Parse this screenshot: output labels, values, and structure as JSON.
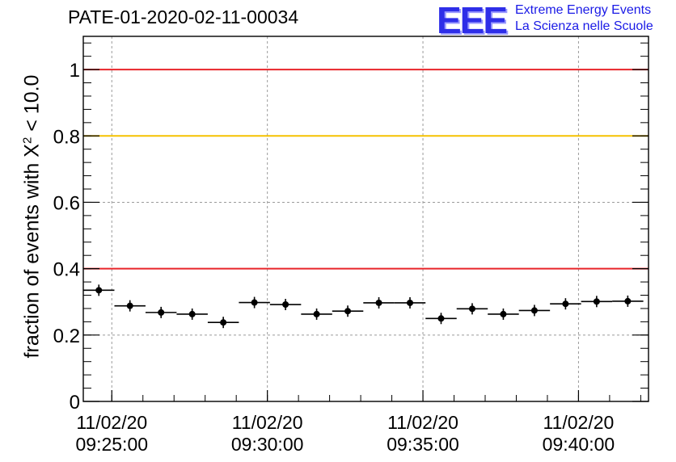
{
  "title": "PATE-01-2020-02-11-00034",
  "logo": {
    "mark": "EEE",
    "line1": "Extreme Energy Events",
    "line2": "La Scienza nelle Scuole"
  },
  "chart_data": {
    "type": "scatter",
    "ylabel_prefix": "fraction of events with X",
    "ylabel_sup": "2",
    "ylabel_suffix": " < 10.0",
    "ylim": [
      0,
      1.1
    ],
    "yticks": [
      "0",
      "0.2",
      "0.4",
      "0.6",
      "0.8",
      "1"
    ],
    "x_start": "11/02/20 09:24:05",
    "x_end": "11/02/20 09:42:15",
    "xticks": [
      {
        "date": "11/02/20",
        "time": "09:25:00"
      },
      {
        "date": "11/02/20",
        "time": "09:30:00"
      },
      {
        "date": "11/02/20",
        "time": "09:35:00"
      },
      {
        "date": "11/02/20",
        "time": "09:40:00"
      }
    ],
    "grid": true,
    "reference_lines": [
      {
        "y": 1.0,
        "color": "#e8252a"
      },
      {
        "y": 0.8,
        "color": "#f5c200"
      },
      {
        "y": 0.4,
        "color": "#e8252a"
      }
    ],
    "series": [
      {
        "color": "#000000",
        "x": [
          "09:24:35",
          "09:25:35",
          "09:26:35",
          "09:27:35",
          "09:28:35",
          "09:29:35",
          "09:30:35",
          "09:31:35",
          "09:32:35",
          "09:33:35",
          "09:34:35",
          "09:35:35",
          "09:36:35",
          "09:37:35",
          "09:38:35",
          "09:39:35",
          "09:40:35",
          "09:41:35"
        ],
        "values": [
          0.335,
          0.288,
          0.268,
          0.263,
          0.238,
          0.298,
          0.292,
          0.263,
          0.272,
          0.297,
          0.297,
          0.25,
          0.279,
          0.263,
          0.274,
          0.294,
          0.301,
          0.302
        ],
        "x_half_width_s": 30,
        "y_err": [
          0.017,
          0.017,
          0.017,
          0.017,
          0.017,
          0.017,
          0.017,
          0.017,
          0.017,
          0.017,
          0.017,
          0.017,
          0.017,
          0.017,
          0.017,
          0.017,
          0.017,
          0.017
        ]
      }
    ]
  }
}
